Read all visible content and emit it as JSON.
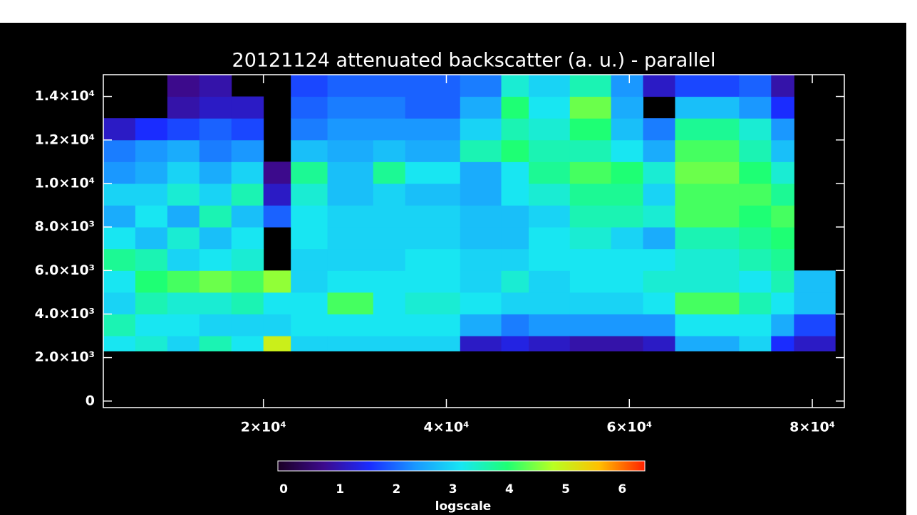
{
  "chart_data": {
    "type": "heatmap",
    "title": "20121124 attenuated backscatter (a. u.) - parallel",
    "x_edges": [
      2500,
      6000,
      9500,
      13000,
      16500,
      20000,
      23000,
      27000,
      32000,
      35500,
      41500,
      46000,
      49000,
      53500,
      58000,
      61500,
      65000,
      72000,
      75500,
      78000,
      82500
    ],
    "y_edges": [
      2300,
      3000,
      4000,
      5000,
      6000,
      7000,
      8000,
      9000,
      10000,
      11000,
      12000,
      13000,
      14000,
      15000
    ],
    "values": [
      [
        3.2,
        3.6,
        3.0,
        3.2,
        3.8,
        3.2,
        2.6,
        3.0,
        2.4,
        2.2,
        1.2,
        null,
        null
      ],
      [
        3.4,
        3.2,
        3.6,
        4.0,
        3.6,
        2.8,
        3.2,
        3.0,
        2.6,
        2.4,
        1.6,
        null,
        null
      ],
      [
        3.0,
        3.2,
        3.4,
        4.2,
        3.0,
        3.4,
        2.6,
        3.4,
        3.0,
        2.6,
        1.8,
        1.0,
        0.8
      ],
      [
        3.6,
        3.0,
        3.4,
        4.4,
        3.2,
        2.8,
        3.6,
        3.0,
        2.6,
        2.2,
        2.0,
        1.2,
        1.0
      ],
      [
        3.2,
        3.0,
        3.6,
        4.2,
        3.4,
        3.2,
        2.8,
        3.6,
        3.0,
        2.4,
        1.8,
        1.2,
        null
      ],
      [
        5.0,
        3.0,
        3.2,
        4.6,
        null,
        null,
        2.0,
        1.2,
        0.8,
        null,
        null,
        null,
        null
      ],
      [
        3.0,
        3.2,
        3.2,
        3.0,
        3.0,
        3.2,
        3.2,
        3.4,
        3.8,
        2.8,
        2.2,
        2.0,
        1.8
      ],
      [
        3.0,
        3.2,
        4.2,
        3.2,
        3.0,
        3.0,
        3.0,
        2.8,
        2.8,
        2.6,
        2.4,
        2.2,
        2.0
      ],
      [
        3.0,
        3.2,
        3.2,
        3.2,
        3.0,
        3.0,
        3.0,
        3.0,
        3.8,
        2.8,
        2.4,
        2.2,
        2.0
      ],
      [
        3.0,
        3.2,
        3.4,
        3.2,
        3.2,
        3.0,
        3.0,
        2.8,
        3.2,
        2.6,
        2.4,
        2.0,
        2.0
      ],
      [
        1.2,
        2.6,
        3.2,
        3.0,
        3.0,
        2.8,
        2.8,
        2.6,
        2.6,
        3.6,
        3.0,
        2.6,
        2.2
      ],
      [
        1.4,
        2.2,
        3.0,
        3.4,
        3.0,
        2.8,
        2.8,
        3.2,
        3.2,
        4.0,
        3.6,
        4.0,
        3.4
      ],
      [
        1.2,
        2.4,
        3.0,
        3.0,
        3.2,
        3.2,
        3.0,
        3.4,
        3.8,
        3.6,
        3.4,
        3.2,
        3.0
      ],
      [
        1.0,
        2.4,
        3.0,
        3.2,
        3.2,
        3.4,
        3.6,
        3.8,
        4.2,
        3.6,
        4.0,
        4.4,
        3.6
      ],
      [
        1.0,
        2.4,
        3.0,
        3.2,
        3.2,
        3.0,
        3.6,
        3.8,
        4.0,
        3.2,
        2.8,
        2.6,
        2.4
      ],
      [
        1.2,
        2.4,
        3.2,
        3.4,
        3.2,
        2.6,
        3.4,
        3.0,
        3.4,
        2.6,
        2.2,
        null,
        1.2
      ],
      [
        2.6,
        3.2,
        4.2,
        3.4,
        3.4,
        3.6,
        4.2,
        4.2,
        4.4,
        4.2,
        3.8,
        2.8,
        1.8
      ],
      [
        3.0,
        3.2,
        3.6,
        3.2,
        3.6,
        3.8,
        4.0,
        4.2,
        4.0,
        3.6,
        3.4,
        2.4,
        2.0
      ],
      [
        1.6,
        2.6,
        3.2,
        3.6,
        3.8,
        4.0,
        4.2,
        3.8,
        3.4,
        2.8,
        2.4,
        1.6,
        1.0
      ],
      [
        1.2,
        1.8,
        2.8,
        2.8,
        null,
        null,
        null,
        null,
        null,
        null,
        null,
        null,
        null
      ]
    ],
    "xlim": [
      2500,
      83500
    ],
    "ylim": [
      -300,
      15000
    ],
    "xticks": [
      {
        "value": 20000,
        "label": "2×10⁴"
      },
      {
        "value": 40000,
        "label": "4×10⁴"
      },
      {
        "value": 60000,
        "label": "6×10⁴"
      },
      {
        "value": 80000,
        "label": "8×10⁴"
      }
    ],
    "yticks": [
      0,
      {
        "value": 2000,
        "label": "2.0×10³"
      },
      {
        "value": 4000,
        "label": "4.0×10³"
      },
      {
        "value": 6000,
        "label": "6.0×10³"
      },
      {
        "value": 8000,
        "label": "8.0×10³"
      },
      {
        "value": 10000,
        "label": "1.0×10⁴"
      },
      {
        "value": 12000,
        "label": "1.2×10⁴"
      },
      {
        "value": 14000,
        "label": "1.4×10⁴"
      }
    ],
    "clim": [
      0,
      6.4
    ],
    "colorscale": [
      "#1a0024",
      "#3c0a8c",
      "#1a2cff",
      "#1a98ff",
      "#18e6f2",
      "#1eff74",
      "#b8ff22",
      "#ffc000",
      "#ff2000"
    ],
    "colorbar": {
      "label": "logscale",
      "ticks": [
        0,
        1,
        2,
        3,
        4,
        5,
        6
      ]
    }
  }
}
